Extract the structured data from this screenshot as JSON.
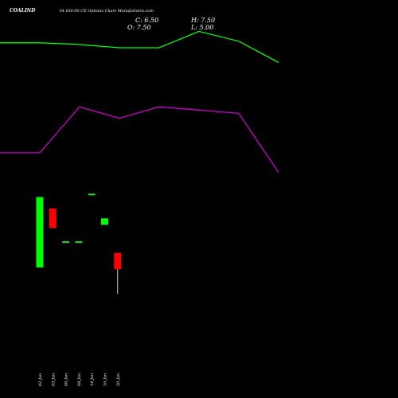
{
  "header": {
    "symbol": "COALIND",
    "subtitle": "IA 450.00  CE Options  Chart MunafaSutra.com",
    "close_label": "C: 6.50",
    "high_label": "H: 7.50",
    "open_label": "O: 7.50",
    "low_label": "L: 5.00"
  },
  "colors": {
    "background": "#000000",
    "bullish": "#00ff00",
    "bearish": "#ff0000",
    "wick": "#ffffff",
    "text": "#ffffff",
    "upper_band": "#00ff00",
    "lower_band": "#cc00cc"
  },
  "chart_data": {
    "type": "candlestick",
    "ylim": [
      3.5,
      20
    ],
    "candles": [
      {
        "date": "02 Jan",
        "open": 6.6,
        "high": 10.9,
        "low": 6.6,
        "close": 10.9,
        "color": "green"
      },
      {
        "date": "03 Jan",
        "open": 10.2,
        "high": 10.2,
        "low": 9.0,
        "close": 9.0,
        "color": "red"
      },
      {
        "date": "06 Jan",
        "open": 8.2,
        "high": 8.2,
        "low": 8.2,
        "close": 8.2,
        "color": "green"
      },
      {
        "date": "08 Jan",
        "open": 8.2,
        "high": 8.2,
        "low": 8.2,
        "close": 8.2,
        "color": "green"
      },
      {
        "date": "14 Jan",
        "open": 11.1,
        "high": 11.1,
        "low": 11.1,
        "close": 11.1,
        "color": "green"
      },
      {
        "date": "16 Jan",
        "open": 9.2,
        "high": 9.6,
        "low": 9.2,
        "close": 9.6,
        "color": "green"
      },
      {
        "date": "20 Jan",
        "open": 7.5,
        "high": 7.5,
        "low": 5.0,
        "close": 6.5,
        "color": "red"
      }
    ],
    "upper_band": [
      {
        "x": 0,
        "y": 20.3
      },
      {
        "x": 1,
        "y": 20.3
      },
      {
        "x": 2,
        "y": 20.2
      },
      {
        "x": 3,
        "y": 20.0
      },
      {
        "x": 4,
        "y": 20.0
      },
      {
        "x": 5,
        "y": 21.0
      },
      {
        "x": 6,
        "y": 20.4
      },
      {
        "x": 7,
        "y": 19.1
      }
    ],
    "lower_band": [
      {
        "x": 0,
        "y": 13.6
      },
      {
        "x": 1,
        "y": 13.6
      },
      {
        "x": 2,
        "y": 16.4
      },
      {
        "x": 3,
        "y": 15.7
      },
      {
        "x": 4,
        "y": 16.4
      },
      {
        "x": 5,
        "y": 16.2
      },
      {
        "x": 6,
        "y": 16.0
      },
      {
        "x": 7,
        "y": 12.4
      }
    ]
  }
}
